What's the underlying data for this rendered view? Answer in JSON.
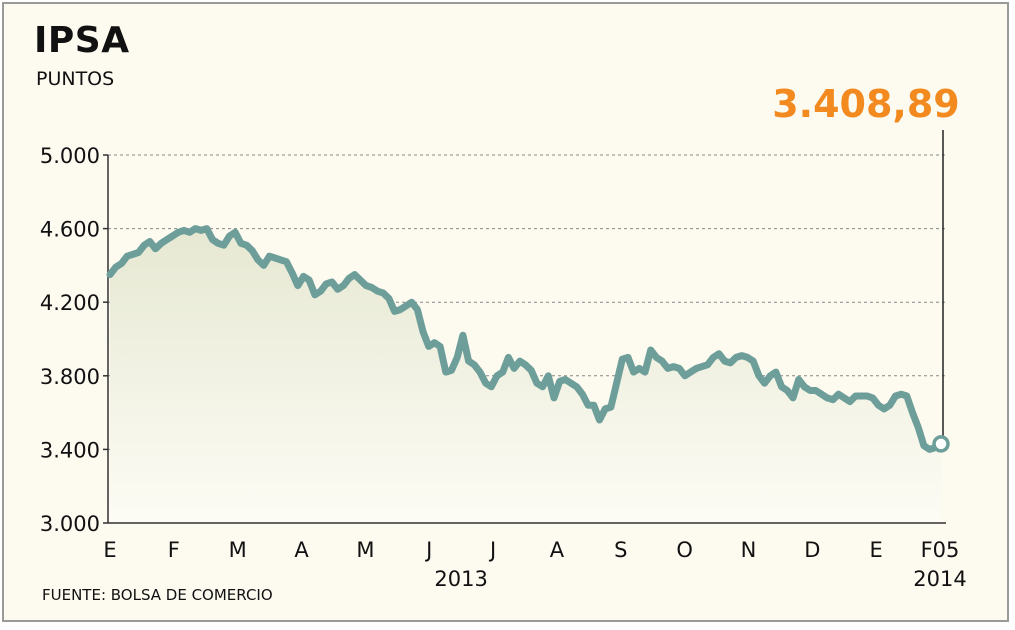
{
  "header": {
    "title": "IPSA",
    "subtitle": "PUNTOS"
  },
  "footer": {
    "source": "FUENTE: BOLSA DE COMERCIO"
  },
  "colors": {
    "line": "#6e9e9a",
    "callout": "#f28a1f",
    "area_top": "#e9ead8",
    "grid": "#888888"
  },
  "chart_data": {
    "type": "line",
    "title": "IPSA",
    "ylabel": "PUNTOS",
    "ylim": [
      3000,
      5000
    ],
    "y_ticks": [
      {
        "value": 5000,
        "label": "5.000"
      },
      {
        "value": 4600,
        "label": "4.600"
      },
      {
        "value": 4200,
        "label": "4.200"
      },
      {
        "value": 3800,
        "label": "3.800"
      },
      {
        "value": 3400,
        "label": "3.400"
      },
      {
        "value": 3000,
        "label": "3.000"
      }
    ],
    "x_ticks": [
      "E",
      "F",
      "M",
      "A",
      "M",
      "J",
      "J",
      "A",
      "S",
      "O",
      "N",
      "D",
      "E",
      "F05"
    ],
    "x_year_labels": [
      {
        "label": "2013",
        "at_tick": 5.5
      },
      {
        "label": "2014",
        "at_tick": 13
      }
    ],
    "grid": true,
    "last_value_label": "3.408,89",
    "series": [
      {
        "values": [
          4350,
          4390,
          4410,
          4450,
          4460,
          4470,
          4510,
          4530,
          4490,
          4520,
          4540,
          4560,
          4580,
          4590,
          4580,
          4600,
          4590,
          4600,
          4540,
          4520,
          4510,
          4560,
          4580,
          4520,
          4510,
          4480,
          4430,
          4400,
          4450,
          4440,
          4430,
          4420,
          4360,
          4290,
          4340,
          4320,
          4240,
          4260,
          4300,
          4310,
          4270,
          4290,
          4330,
          4350,
          4320,
          4290,
          4280,
          4260,
          4250,
          4220,
          4150,
          4160,
          4180,
          4200,
          4160,
          4040,
          3960,
          3980,
          3960,
          3820,
          3830,
          3900,
          4020,
          3880,
          3860,
          3820,
          3760,
          3740,
          3800,
          3820,
          3900,
          3840,
          3880,
          3860,
          3830,
          3760,
          3740,
          3800,
          3680,
          3770,
          3780,
          3760,
          3740,
          3700,
          3640,
          3640,
          3560,
          3620,
          3630,
          3760,
          3890,
          3900,
          3820,
          3840,
          3820,
          3940,
          3900,
          3880,
          3840,
          3850,
          3840,
          3800,
          3820,
          3840,
          3850,
          3860,
          3900,
          3920,
          3880,
          3870,
          3900,
          3910,
          3900,
          3880,
          3800,
          3760,
          3800,
          3820,
          3740,
          3720,
          3680,
          3780,
          3740,
          3720,
          3720,
          3700,
          3680,
          3670,
          3700,
          3680,
          3660,
          3690,
          3690,
          3690,
          3680,
          3640,
          3620,
          3640,
          3690,
          3700,
          3690,
          3600,
          3520,
          3420,
          3400,
          3410,
          3430
        ]
      }
    ]
  }
}
